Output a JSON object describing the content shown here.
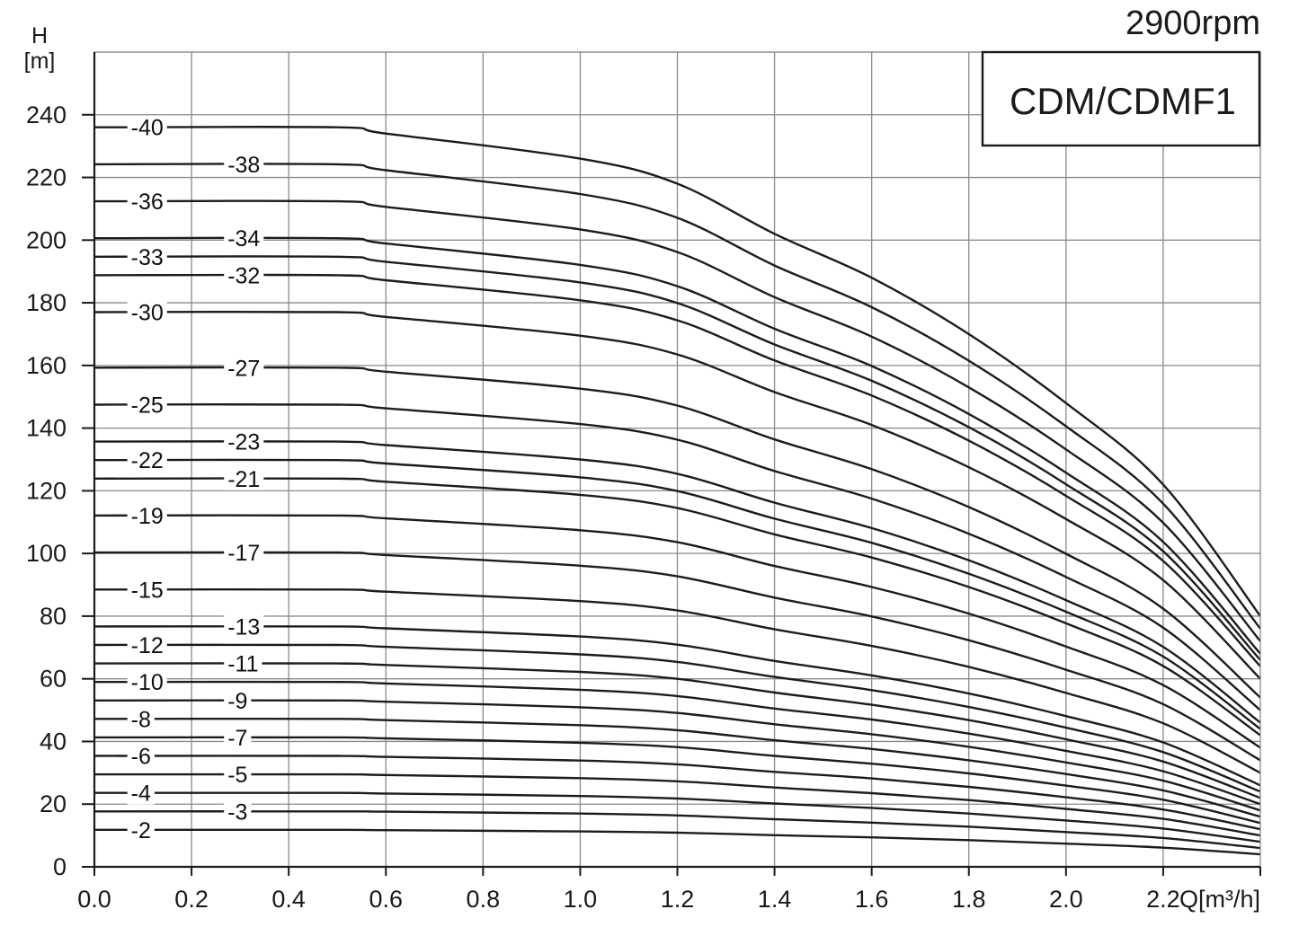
{
  "chart_data": {
    "type": "line",
    "speed_label": "2900rpm",
    "model_label": "CDM/CDMF1",
    "ylabel_top": "H",
    "ylabel_unit": "[m]",
    "xlabel": "Q[m³/h]",
    "xlim": [
      0,
      2.4
    ],
    "ylim": [
      0,
      260
    ],
    "grid": true,
    "x_ticks": [
      "0.0",
      "0.2",
      "0.4",
      "0.6",
      "0.8",
      "1.0",
      "1.2",
      "1.4",
      "1.6",
      "1.8",
      "2.0",
      "2.2"
    ],
    "y_ticks": [
      "0",
      "20",
      "40",
      "60",
      "80",
      "100",
      "120",
      "140",
      "160",
      "180",
      "200",
      "220",
      "240"
    ],
    "x": [
      0.0,
      0.5,
      0.6,
      1.0,
      1.2,
      1.4,
      1.6,
      1.8,
      2.0,
      2.2,
      2.4
    ],
    "head_per_stage": [
      5.9,
      5.9,
      5.85,
      5.65,
      5.45,
      5.05,
      4.7,
      4.25,
      3.7,
      3.05,
      2.0
    ],
    "series": [
      {
        "name": "-2",
        "values": [
          11.8,
          11.8,
          11.7,
          11.3,
          10.9,
          10.1,
          9.4,
          8.5,
          7.4,
          6.1,
          4.0
        ]
      },
      {
        "name": "-3",
        "values": [
          17.7,
          17.7,
          17.6,
          17.0,
          16.4,
          15.2,
          14.1,
          12.8,
          11.1,
          9.2,
          6.0
        ]
      },
      {
        "name": "-4",
        "values": [
          23.6,
          23.6,
          23.4,
          22.6,
          21.8,
          20.2,
          18.8,
          17.0,
          14.8,
          12.2,
          8.0
        ]
      },
      {
        "name": "-5",
        "values": [
          29.5,
          29.5,
          29.3,
          28.3,
          27.3,
          25.3,
          23.5,
          21.3,
          18.5,
          15.3,
          10.0
        ]
      },
      {
        "name": "-6",
        "values": [
          35.4,
          35.4,
          35.1,
          33.9,
          32.7,
          30.3,
          28.2,
          25.5,
          22.2,
          18.3,
          12.0
        ]
      },
      {
        "name": "-7",
        "values": [
          41.3,
          41.3,
          41.0,
          39.6,
          38.2,
          35.4,
          32.9,
          29.8,
          25.9,
          21.4,
          14.0
        ]
      },
      {
        "name": "-8",
        "values": [
          47.2,
          47.2,
          46.8,
          45.2,
          43.6,
          40.4,
          37.6,
          34.0,
          29.6,
          24.4,
          16.0
        ]
      },
      {
        "name": "-9",
        "values": [
          53.1,
          53.1,
          52.7,
          50.9,
          49.1,
          45.5,
          42.3,
          38.3,
          33.3,
          27.5,
          18.0
        ]
      },
      {
        "name": "-10",
        "values": [
          59.0,
          59.0,
          58.5,
          56.5,
          54.5,
          50.5,
          47.0,
          42.5,
          37.0,
          30.5,
          20.0
        ]
      },
      {
        "name": "-11",
        "values": [
          64.9,
          64.9,
          64.4,
          62.2,
          60.0,
          55.6,
          51.7,
          46.8,
          40.7,
          33.6,
          22.0
        ]
      },
      {
        "name": "-12",
        "values": [
          70.8,
          70.8,
          70.2,
          67.8,
          65.4,
          60.6,
          56.4,
          51.0,
          44.4,
          36.6,
          24.0
        ]
      },
      {
        "name": "-13",
        "values": [
          76.7,
          76.7,
          76.1,
          73.5,
          70.9,
          65.7,
          61.1,
          55.3,
          48.1,
          39.7,
          26.0
        ]
      },
      {
        "name": "-15",
        "values": [
          88.5,
          88.5,
          87.8,
          84.8,
          81.8,
          75.8,
          70.5,
          63.8,
          55.5,
          45.8,
          30.0
        ]
      },
      {
        "name": "-17",
        "values": [
          100.3,
          100.3,
          99.5,
          96.1,
          92.7,
          85.9,
          79.9,
          72.3,
          62.9,
          51.9,
          34.0
        ]
      },
      {
        "name": "-19",
        "values": [
          112.1,
          112.1,
          111.2,
          107.4,
          103.6,
          96.0,
          89.3,
          80.8,
          70.3,
          58.0,
          38.0
        ]
      },
      {
        "name": "-21",
        "values": [
          123.9,
          123.9,
          122.9,
          118.7,
          114.5,
          106.1,
          98.7,
          89.3,
          77.7,
          64.1,
          42.0
        ]
      },
      {
        "name": "-22",
        "values": [
          129.8,
          129.8,
          128.7,
          124.3,
          119.9,
          111.1,
          103.4,
          93.5,
          81.4,
          67.1,
          44.0
        ]
      },
      {
        "name": "-23",
        "values": [
          135.7,
          135.7,
          134.6,
          130.0,
          125.4,
          116.2,
          108.1,
          97.8,
          85.1,
          70.2,
          46.0
        ]
      },
      {
        "name": "-25",
        "values": [
          147.5,
          147.5,
          146.3,
          141.3,
          136.3,
          126.3,
          117.5,
          106.3,
          92.5,
          76.3,
          50.0
        ]
      },
      {
        "name": "-27",
        "values": [
          159.3,
          159.3,
          158.0,
          152.6,
          147.2,
          136.4,
          126.9,
          114.8,
          99.9,
          82.4,
          54.0
        ]
      },
      {
        "name": "-30",
        "values": [
          177.0,
          177.0,
          175.5,
          169.5,
          163.5,
          151.5,
          141.0,
          127.5,
          111.0,
          91.5,
          60.0
        ]
      },
      {
        "name": "-32",
        "values": [
          188.8,
          188.8,
          187.2,
          180.8,
          174.4,
          161.6,
          150.4,
          136.0,
          118.4,
          97.6,
          64.0
        ]
      },
      {
        "name": "-33",
        "values": [
          194.7,
          194.7,
          193.1,
          186.5,
          179.9,
          166.7,
          155.1,
          140.3,
          122.1,
          100.7,
          66.0
        ]
      },
      {
        "name": "-34",
        "values": [
          200.6,
          200.6,
          198.9,
          192.1,
          185.3,
          171.7,
          159.8,
          144.5,
          125.8,
          103.7,
          68.0
        ]
      },
      {
        "name": "-36",
        "values": [
          212.4,
          212.4,
          210.6,
          203.4,
          196.2,
          181.8,
          169.2,
          153.0,
          133.2,
          109.8,
          72.0
        ]
      },
      {
        "name": "-38",
        "values": [
          224.2,
          224.2,
          222.3,
          214.7,
          207.1,
          191.9,
          178.6,
          161.5,
          140.6,
          115.9,
          76.0
        ]
      },
      {
        "name": "-40",
        "values": [
          236.0,
          236.0,
          234.0,
          226.0,
          218.0,
          202.0,
          188.0,
          170.0,
          148.0,
          122.0,
          80.0
        ]
      }
    ]
  }
}
